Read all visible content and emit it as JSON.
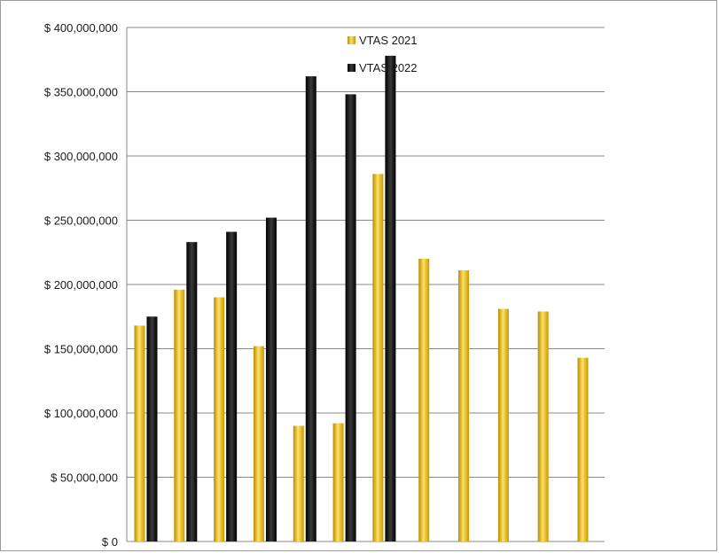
{
  "chart_data": {
    "type": "bar",
    "title": "",
    "xlabel": "",
    "ylabel": "",
    "ylim": [
      0,
      400000000
    ],
    "yticks": [
      0,
      50000000,
      100000000,
      150000000,
      200000000,
      250000000,
      300000000,
      350000000,
      400000000
    ],
    "ytick_labels": [
      "$ 0",
      "$ 50,000,000",
      "$ 100,000,000",
      "$ 150,000,000",
      "$ 200,000,000",
      "$ 250,000,000",
      "$ 300,000,000",
      "$ 350,000,000",
      "$ 400,000,000"
    ],
    "grid": true,
    "legend_position": "top-center",
    "num_categories": 12,
    "series": [
      {
        "name": "VTAS 2021",
        "color": "#F2C200",
        "values": [
          168000000,
          196000000,
          190000000,
          152000000,
          90000000,
          92000000,
          286000000,
          220000000,
          211000000,
          181000000,
          179000000,
          143000000
        ]
      },
      {
        "name": "VTAS 2022",
        "color": "#111111",
        "values": [
          175000000,
          233000000,
          241000000,
          252000000,
          362000000,
          348000000,
          378000000,
          null,
          null,
          null,
          null,
          null
        ]
      }
    ]
  }
}
